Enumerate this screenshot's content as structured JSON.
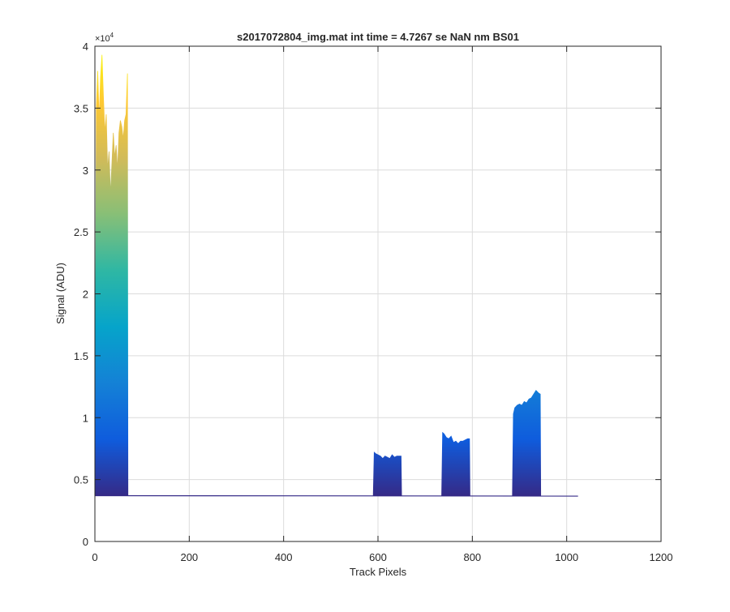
{
  "chart_data": {
    "type": "area",
    "title": "s2017072804_img.mat int time = 4.7267 se  NaN nm BS01",
    "xlabel": "Track Pixels",
    "ylabel": "Signal (ADU)",
    "y_exponent_label": "×10",
    "y_exponent_power": "4",
    "xlim": [
      0,
      1200
    ],
    "ylim": [
      0,
      40000
    ],
    "x_ticks": [
      0,
      200,
      400,
      600,
      800,
      1000,
      1200
    ],
    "x_tick_labels": [
      "0",
      "200",
      "400",
      "600",
      "800",
      "1000",
      "1200"
    ],
    "y_ticks": [
      0,
      5000,
      10000,
      15000,
      20000,
      25000,
      30000,
      35000,
      40000
    ],
    "y_tick_labels": [
      "0",
      "0.5",
      "1",
      "1.5",
      "2",
      "2.5",
      "3",
      "3.5",
      "4"
    ],
    "grid": true,
    "colormap": [
      "#352a87",
      "#0f5cdd",
      "#1481d6",
      "#06a4ca",
      "#2eb7a4",
      "#87bf77",
      "#d1bb59",
      "#fec832",
      "#f9fb0e"
    ],
    "baseline": 3700,
    "x_max": 1024,
    "series": [
      {
        "x": [
          0,
          3,
          6,
          9,
          12,
          15,
          18,
          21,
          24,
          27,
          30,
          33,
          36,
          39,
          42,
          45,
          48,
          51,
          54,
          57,
          60,
          63,
          66,
          69,
          70,
          72
        ],
        "values": [
          3700,
          35000,
          38000,
          34000,
          37500,
          39300,
          36000,
          33000,
          34500,
          30000,
          31500,
          28000,
          30500,
          33000,
          31000,
          32000,
          30000,
          33000,
          34000,
          33500,
          32500,
          34000,
          34500,
          37800,
          3700,
          3700
        ]
      },
      {
        "x": [
          590,
          592,
          595,
          600,
          605,
          610,
          615,
          620,
          625,
          630,
          635,
          640,
          645,
          649,
          650
        ],
        "values": [
          3700,
          7200,
          7100,
          7000,
          6900,
          6700,
          6900,
          6800,
          6700,
          7000,
          6800,
          6900,
          6900,
          6900,
          3700
        ]
      },
      {
        "x": [
          735,
          737,
          740,
          745,
          750,
          755,
          760,
          765,
          770,
          775,
          780,
          785,
          790,
          794,
          795
        ],
        "values": [
          3700,
          8800,
          8700,
          8400,
          8300,
          8500,
          8000,
          8100,
          7900,
          8100,
          8100,
          8200,
          8300,
          8300,
          3700
        ]
      },
      {
        "x": [
          885,
          887,
          890,
          895,
          900,
          905,
          910,
          915,
          920,
          925,
          930,
          935,
          940,
          944,
          945
        ],
        "values": [
          3700,
          10300,
          10800,
          11000,
          11100,
          11000,
          11300,
          11200,
          11500,
          11600,
          11900,
          12200,
          12000,
          11900,
          3700
        ]
      }
    ]
  }
}
